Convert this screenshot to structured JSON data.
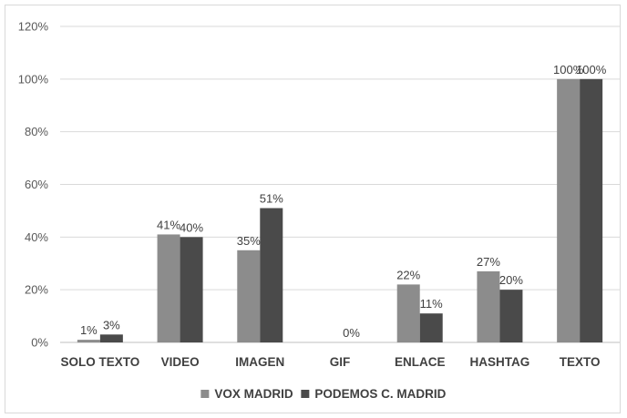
{
  "chart_data": {
    "type": "bar",
    "categories": [
      "SOLO TEXTO",
      "VIDEO",
      "IMAGEN",
      "GIF",
      "ENLACE",
      "HASHTAG",
      "TEXTO"
    ],
    "series": [
      {
        "name": "VOX MADRID",
        "color": "#8c8c8c",
        "values": [
          1,
          41,
          35,
          0,
          22,
          27,
          100
        ],
        "labels": [
          "1%",
          "41%",
          "35%",
          "",
          "22%",
          "27%",
          "100%"
        ]
      },
      {
        "name": "PODEMOS C. MADRID",
        "color": "#4a4a4a",
        "values": [
          3,
          40,
          51,
          0,
          11,
          20,
          100
        ],
        "labels": [
          "3%",
          "40%",
          "51%",
          "0%",
          "11%",
          "20%",
          "100%"
        ]
      }
    ],
    "yticks": [
      "0%",
      "20%",
      "40%",
      "60%",
      "80%",
      "100%",
      "120%"
    ],
    "ylim": [
      0,
      120
    ],
    "grid": true,
    "legend_position": "bottom",
    "title": "",
    "xlabel": "",
    "ylabel": ""
  }
}
